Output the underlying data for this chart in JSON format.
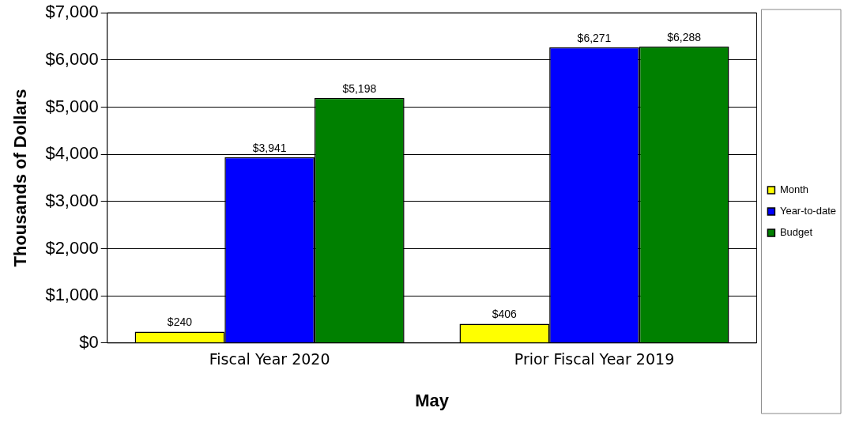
{
  "chart_data": {
    "type": "bar",
    "xlabel": "May",
    "ylabel": "Thousands of Dollars",
    "categories": [
      "Fiscal Year 2020",
      "Prior Fiscal Year 2019"
    ],
    "series": [
      {
        "name": "Month",
        "color": "#ffff00",
        "values": [
          240,
          406
        ],
        "value_labels": [
          "$240",
          "$406"
        ]
      },
      {
        "name": "Year-to-date",
        "color": "#0000ff",
        "values": [
          3941,
          6271
        ],
        "value_labels": [
          "$3,941",
          "$6,271"
        ]
      },
      {
        "name": "Budget",
        "color": "#008000",
        "values": [
          5198,
          6288
        ],
        "value_labels": [
          "$5,198",
          "$6,288"
        ]
      }
    ],
    "ylim": [
      0,
      7000
    ],
    "yticks": [
      {
        "value": 0,
        "label": "$0"
      },
      {
        "value": 1000,
        "label": "$1,000"
      },
      {
        "value": 2000,
        "label": "$2,000"
      },
      {
        "value": 3000,
        "label": "$3,000"
      },
      {
        "value": 4000,
        "label": "$4,000"
      },
      {
        "value": 5000,
        "label": "$5,000"
      },
      {
        "value": 6000,
        "label": "$6,000"
      },
      {
        "value": 7000,
        "label": "$7,000"
      }
    ],
    "grid": "y",
    "legend": "right"
  }
}
